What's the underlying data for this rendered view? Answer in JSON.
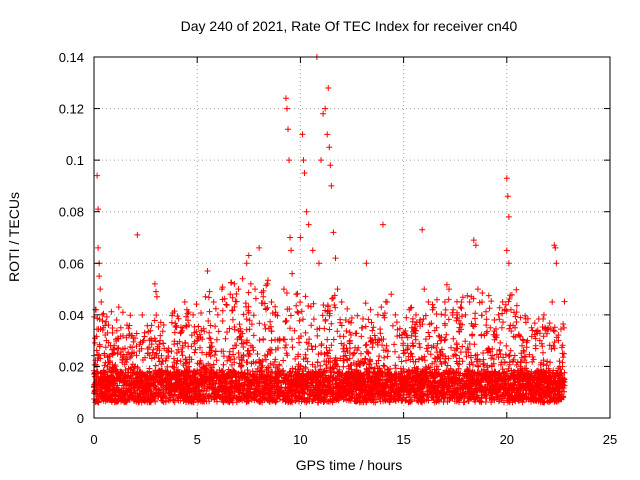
{
  "chart_data": {
    "type": "scatter",
    "title": "Day 240 of 2021, Rate Of TEC Index for receiver cn40",
    "xlabel": "GPS time / hours",
    "ylabel": "ROTI / TECUs",
    "xlim": [
      0,
      25
    ],
    "ylim": [
      0,
      0.14
    ],
    "x_ticks": [
      {
        "value": 0,
        "label": "0"
      },
      {
        "value": 5,
        "label": "5"
      },
      {
        "value": 10,
        "label": "10"
      },
      {
        "value": 15,
        "label": "15"
      },
      {
        "value": 20,
        "label": "20"
      },
      {
        "value": 25,
        "label": "25"
      }
    ],
    "y_ticks": [
      {
        "value": 0,
        "label": "0"
      },
      {
        "value": 0.02,
        "label": "0.02"
      },
      {
        "value": 0.04,
        "label": "0.04"
      },
      {
        "value": 0.06,
        "label": "0.06"
      },
      {
        "value": 0.08,
        "label": "0.08"
      },
      {
        "value": 0.1,
        "label": "0.1"
      },
      {
        "value": 0.12,
        "label": "0.12"
      },
      {
        "value": 0.14,
        "label": "0.14"
      }
    ],
    "grid": true,
    "marker": "+",
    "series": [
      {
        "name": "ROTI",
        "color": "#ff0000",
        "points": [
          [
            0.0,
            0.012
          ],
          [
            0.05,
            0.031
          ],
          [
            0.1,
            0.042
          ],
          [
            0.15,
            0.094
          ],
          [
            0.2,
            0.081
          ],
          [
            0.2,
            0.066
          ],
          [
            0.25,
            0.06
          ],
          [
            0.25,
            0.055
          ],
          [
            0.3,
            0.05
          ],
          [
            0.35,
            0.045
          ],
          [
            0.4,
            0.04
          ],
          [
            0.45,
            0.035
          ],
          [
            0.5,
            0.025
          ],
          [
            0.6,
            0.03
          ],
          [
            0.7,
            0.036
          ],
          [
            0.8,
            0.028
          ],
          [
            0.9,
            0.033
          ],
          [
            1.0,
            0.02
          ],
          [
            1.1,
            0.038
          ],
          [
            1.2,
            0.043
          ],
          [
            1.3,
            0.035
          ],
          [
            1.4,
            0.041
          ],
          [
            1.5,
            0.027
          ],
          [
            1.6,
            0.036
          ],
          [
            1.7,
            0.032
          ],
          [
            1.8,
            0.024
          ],
          [
            1.9,
            0.031
          ],
          [
            2.0,
            0.02
          ],
          [
            2.1,
            0.071
          ],
          [
            2.2,
            0.026
          ],
          [
            2.4,
            0.03
          ],
          [
            2.6,
            0.025
          ],
          [
            2.8,
            0.03
          ],
          [
            2.95,
            0.052
          ],
          [
            3.0,
            0.049
          ],
          [
            3.05,
            0.047
          ],
          [
            3.2,
            0.03
          ],
          [
            3.4,
            0.027
          ],
          [
            3.6,
            0.024
          ],
          [
            3.8,
            0.02
          ],
          [
            4.0,
            0.018
          ],
          [
            4.2,
            0.022
          ],
          [
            4.3,
            0.028
          ],
          [
            4.4,
            0.045
          ],
          [
            4.5,
            0.042
          ],
          [
            4.6,
            0.036
          ],
          [
            4.8,
            0.04
          ],
          [
            5.0,
            0.03
          ],
          [
            5.2,
            0.034
          ],
          [
            5.4,
            0.047
          ],
          [
            5.5,
            0.057
          ],
          [
            5.6,
            0.049
          ],
          [
            5.8,
            0.045
          ],
          [
            6.0,
            0.04
          ],
          [
            6.2,
            0.05
          ],
          [
            6.4,
            0.044
          ],
          [
            6.6,
            0.048
          ],
          [
            6.8,
            0.052
          ],
          [
            7.0,
            0.05
          ],
          [
            7.2,
            0.054
          ],
          [
            7.4,
            0.06
          ],
          [
            7.5,
            0.063
          ],
          [
            7.6,
            0.052
          ],
          [
            7.8,
            0.05
          ],
          [
            8.0,
            0.066
          ],
          [
            8.2,
            0.047
          ],
          [
            8.4,
            0.052
          ],
          [
            8.6,
            0.045
          ],
          [
            8.8,
            0.041
          ],
          [
            9.0,
            0.03
          ],
          [
            9.2,
            0.05
          ],
          [
            9.3,
            0.124
          ],
          [
            9.35,
            0.12
          ],
          [
            9.4,
            0.112
          ],
          [
            9.45,
            0.1
          ],
          [
            9.5,
            0.07
          ],
          [
            9.55,
            0.065
          ],
          [
            9.6,
            0.056
          ],
          [
            9.8,
            0.048
          ],
          [
            10.0,
            0.07
          ],
          [
            10.1,
            0.11
          ],
          [
            10.15,
            0.1
          ],
          [
            10.2,
            0.095
          ],
          [
            10.3,
            0.08
          ],
          [
            10.4,
            0.075
          ],
          [
            10.6,
            0.065
          ],
          [
            10.8,
            0.14
          ],
          [
            10.9,
            0.06
          ],
          [
            11.0,
            0.1
          ],
          [
            11.1,
            0.118
          ],
          [
            11.2,
            0.12
          ],
          [
            11.3,
            0.11
          ],
          [
            11.35,
            0.128
          ],
          [
            11.4,
            0.105
          ],
          [
            11.45,
            0.098
          ],
          [
            11.5,
            0.09
          ],
          [
            11.6,
            0.072
          ],
          [
            11.7,
            0.062
          ],
          [
            11.8,
            0.05
          ],
          [
            12.0,
            0.045
          ],
          [
            12.2,
            0.038
          ],
          [
            12.4,
            0.03
          ],
          [
            12.6,
            0.025
          ],
          [
            12.8,
            0.022
          ],
          [
            13.0,
            0.035
          ],
          [
            13.2,
            0.06
          ],
          [
            13.4,
            0.042
          ],
          [
            13.6,
            0.032
          ],
          [
            14.0,
            0.075
          ],
          [
            14.2,
            0.045
          ],
          [
            14.4,
            0.048
          ],
          [
            14.6,
            0.04
          ],
          [
            14.8,
            0.032
          ],
          [
            15.0,
            0.025
          ],
          [
            15.2,
            0.028
          ],
          [
            15.4,
            0.035
          ],
          [
            15.6,
            0.04
          ],
          [
            15.8,
            0.038
          ],
          [
            15.9,
            0.073
          ],
          [
            16.0,
            0.05
          ],
          [
            16.2,
            0.045
          ],
          [
            16.4,
            0.042
          ],
          [
            16.6,
            0.035
          ],
          [
            16.8,
            0.03
          ],
          [
            17.0,
            0.045
          ],
          [
            17.2,
            0.05
          ],
          [
            17.4,
            0.042
          ],
          [
            17.6,
            0.04
          ],
          [
            17.8,
            0.045
          ],
          [
            18.0,
            0.04
          ],
          [
            18.2,
            0.045
          ],
          [
            18.4,
            0.069
          ],
          [
            18.5,
            0.067
          ],
          [
            18.6,
            0.05
          ],
          [
            18.8,
            0.045
          ],
          [
            19.0,
            0.036
          ],
          [
            19.2,
            0.035
          ],
          [
            19.4,
            0.038
          ],
          [
            19.6,
            0.04
          ],
          [
            19.8,
            0.045
          ],
          [
            20.0,
            0.093
          ],
          [
            20.05,
            0.086
          ],
          [
            20.1,
            0.078
          ],
          [
            20.0,
            0.065
          ],
          [
            20.1,
            0.06
          ],
          [
            20.2,
            0.042
          ],
          [
            20.4,
            0.035
          ],
          [
            20.6,
            0.032
          ],
          [
            20.8,
            0.03
          ],
          [
            21.0,
            0.03
          ],
          [
            21.2,
            0.035
          ],
          [
            21.4,
            0.028
          ],
          [
            21.6,
            0.03
          ],
          [
            21.8,
            0.04
          ],
          [
            22.0,
            0.035
          ],
          [
            22.2,
            0.045
          ],
          [
            22.3,
            0.067
          ],
          [
            22.35,
            0.066
          ],
          [
            22.4,
            0.06
          ],
          [
            22.5,
            0.03
          ],
          [
            22.7,
            0.02
          ],
          [
            22.8,
            0.015
          ]
        ]
      }
    ]
  }
}
